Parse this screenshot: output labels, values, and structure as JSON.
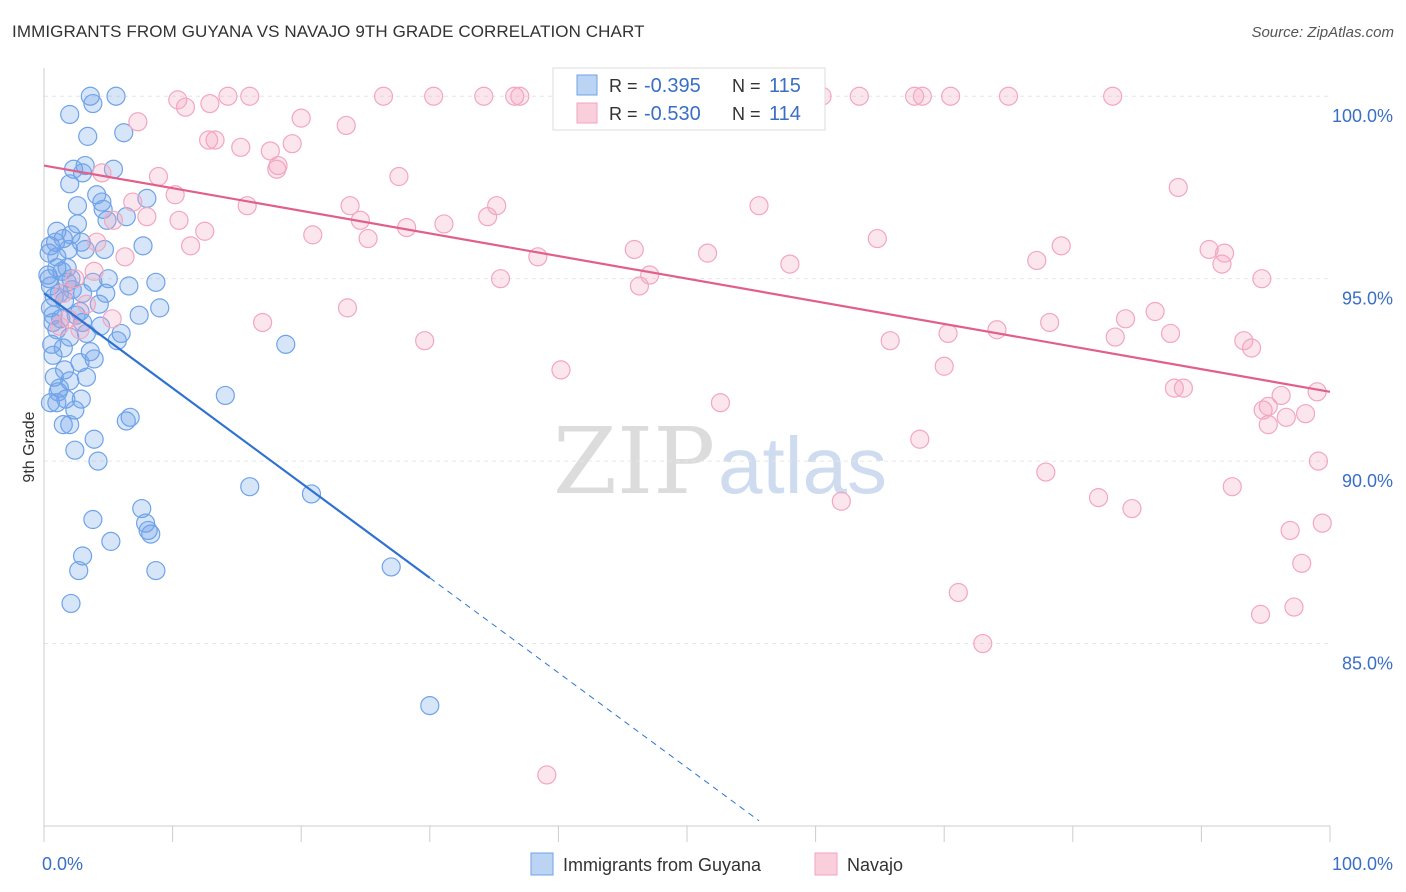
{
  "title": "IMMIGRANTS FROM GUYANA VS NAVAJO 9TH GRADE CORRELATION CHART",
  "source": "Source: ZipAtlas.com",
  "watermark": {
    "zip": "ZIP",
    "atlas": "atlas"
  },
  "chart_data": {
    "type": "scatter",
    "ylabel": "9th Grade",
    "xlim": [
      0,
      100
    ],
    "ylim": [
      80.0,
      100.5
    ],
    "y_ticks": [
      85.0,
      90.0,
      95.0,
      100.0
    ],
    "y_tick_labels": [
      "85.0%",
      "90.0%",
      "95.0%",
      "100.0%"
    ],
    "x_tick_labels": [
      "0.0%",
      "100.0%"
    ],
    "grid": true,
    "legend_placement": "top-center",
    "legend": [
      {
        "r_label": "R = ",
        "r_value": "-0.395",
        "n_label": "N = ",
        "n_value": "115"
      },
      {
        "r_label": "R = ",
        "r_value": "-0.530",
        "n_label": "N = ",
        "n_value": "114"
      }
    ],
    "series": [
      {
        "name": "Immigrants from Guyana",
        "color": "#6fa3e8",
        "line_color": "#2f72d1",
        "trend": {
          "x0": 0.0,
          "y0": 94.6,
          "x1": 30.0,
          "y1": 86.8,
          "dash_to_x": 55.6
        },
        "points": [
          [
            3.6,
            100.0
          ],
          [
            5.6,
            100.0
          ],
          [
            3.8,
            99.8
          ],
          [
            2.0,
            99.5
          ],
          [
            6.2,
            99.0
          ],
          [
            3.4,
            98.9
          ],
          [
            3.2,
            98.1
          ],
          [
            2.3,
            98.0
          ],
          [
            5.4,
            98.0
          ],
          [
            3.0,
            97.9
          ],
          [
            2.0,
            97.6
          ],
          [
            4.1,
            97.3
          ],
          [
            8.0,
            97.2
          ],
          [
            4.5,
            97.1
          ],
          [
            2.6,
            97.0
          ],
          [
            4.6,
            96.9
          ],
          [
            6.4,
            96.7
          ],
          [
            4.9,
            96.6
          ],
          [
            2.6,
            96.5
          ],
          [
            1.0,
            96.3
          ],
          [
            2.1,
            96.2
          ],
          [
            1.5,
            96.1
          ],
          [
            2.9,
            96.0
          ],
          [
            7.7,
            95.9
          ],
          [
            4.7,
            95.8
          ],
          [
            3.2,
            95.8
          ],
          [
            0.4,
            95.7
          ],
          [
            1.0,
            95.6
          ],
          [
            1.8,
            95.3
          ],
          [
            0.3,
            95.1
          ],
          [
            2.1,
            95.0
          ],
          [
            5.0,
            95.0
          ],
          [
            3.8,
            94.9
          ],
          [
            1.8,
            94.9
          ],
          [
            8.7,
            94.9
          ],
          [
            0.5,
            94.8
          ],
          [
            6.6,
            94.8
          ],
          [
            3.0,
            94.6
          ],
          [
            4.8,
            94.6
          ],
          [
            1.6,
            94.4
          ],
          [
            4.3,
            94.3
          ],
          [
            0.5,
            94.2
          ],
          [
            9.0,
            94.2
          ],
          [
            2.8,
            94.1
          ],
          [
            7.4,
            94.0
          ],
          [
            2.5,
            94.0
          ],
          [
            0.7,
            93.8
          ],
          [
            3.0,
            93.8
          ],
          [
            4.4,
            93.7
          ],
          [
            1.0,
            93.6
          ],
          [
            3.3,
            93.5
          ],
          [
            6.0,
            93.5
          ],
          [
            2.0,
            93.4
          ],
          [
            5.7,
            93.3
          ],
          [
            18.8,
            93.2
          ],
          [
            1.5,
            93.1
          ],
          [
            3.6,
            93.0
          ],
          [
            0.7,
            92.9
          ],
          [
            3.9,
            92.8
          ],
          [
            2.8,
            92.7
          ],
          [
            0.8,
            92.3
          ],
          [
            3.3,
            92.3
          ],
          [
            2.0,
            92.2
          ],
          [
            1.2,
            92.0
          ],
          [
            14.1,
            91.8
          ],
          [
            0.5,
            91.6
          ],
          [
            1.0,
            91.6
          ],
          [
            1.7,
            91.7
          ],
          [
            2.9,
            91.7
          ],
          [
            2.4,
            91.4
          ],
          [
            6.7,
            91.2
          ],
          [
            6.4,
            91.1
          ],
          [
            2.0,
            91.0
          ],
          [
            1.5,
            91.0
          ],
          [
            3.9,
            90.6
          ],
          [
            2.4,
            90.3
          ],
          [
            4.2,
            90.0
          ],
          [
            16.0,
            89.3
          ],
          [
            20.8,
            89.1
          ],
          [
            7.6,
            88.7
          ],
          [
            3.8,
            88.4
          ],
          [
            7.9,
            88.3
          ],
          [
            8.1,
            88.1
          ],
          [
            8.3,
            88.0
          ],
          [
            5.2,
            87.8
          ],
          [
            3.0,
            87.4
          ],
          [
            27.0,
            87.1
          ],
          [
            2.7,
            87.0
          ],
          [
            8.7,
            87.0
          ],
          [
            2.1,
            86.1
          ],
          [
            30.0,
            83.3
          ],
          [
            1.0,
            95.3
          ],
          [
            0.8,
            94.5
          ],
          [
            1.3,
            93.9
          ],
          [
            1.9,
            95.8
          ],
          [
            2.2,
            94.7
          ],
          [
            0.9,
            96.0
          ],
          [
            1.4,
            95.2
          ],
          [
            0.6,
            93.2
          ],
          [
            1.1,
            91.9
          ],
          [
            0.4,
            95.0
          ],
          [
            0.7,
            94.0
          ],
          [
            1.2,
            94.6
          ],
          [
            0.5,
            95.9
          ],
          [
            1.6,
            92.5
          ]
        ]
      },
      {
        "name": "Navajo",
        "color": "#f3a6bf",
        "line_color": "#e0608a",
        "trend": {
          "x0": 0.0,
          "y0": 98.1,
          "x1": 100.0,
          "y1": 91.9
        },
        "points": [
          [
            14.3,
            100.0
          ],
          [
            16.0,
            100.0
          ],
          [
            26.4,
            100.0
          ],
          [
            30.3,
            100.0
          ],
          [
            34.2,
            100.0
          ],
          [
            36.6,
            100.0
          ],
          [
            37.0,
            100.0
          ],
          [
            52.1,
            100.0
          ],
          [
            58.5,
            100.0
          ],
          [
            60.5,
            100.0
          ],
          [
            63.4,
            100.0
          ],
          [
            67.7,
            100.0
          ],
          [
            68.3,
            100.0
          ],
          [
            70.5,
            100.0
          ],
          [
            75.0,
            100.0
          ],
          [
            83.1,
            100.0
          ],
          [
            10.4,
            99.9
          ],
          [
            12.9,
            99.8
          ],
          [
            11.0,
            99.7
          ],
          [
            20.0,
            99.4
          ],
          [
            7.3,
            99.3
          ],
          [
            23.5,
            99.2
          ],
          [
            12.8,
            98.8
          ],
          [
            13.3,
            98.8
          ],
          [
            19.3,
            98.7
          ],
          [
            15.3,
            98.6
          ],
          [
            17.6,
            98.5
          ],
          [
            18.2,
            98.1
          ],
          [
            18.1,
            98.0
          ],
          [
            4.5,
            97.9
          ],
          [
            8.9,
            97.8
          ],
          [
            27.6,
            97.8
          ],
          [
            88.2,
            97.5
          ],
          [
            10.2,
            97.3
          ],
          [
            6.9,
            97.1
          ],
          [
            55.6,
            97.0
          ],
          [
            23.8,
            97.0
          ],
          [
            35.2,
            97.0
          ],
          [
            15.8,
            97.0
          ],
          [
            34.5,
            96.7
          ],
          [
            8.0,
            96.7
          ],
          [
            5.4,
            96.6
          ],
          [
            24.6,
            96.6
          ],
          [
            10.5,
            96.6
          ],
          [
            31.1,
            96.5
          ],
          [
            28.2,
            96.4
          ],
          [
            12.5,
            96.3
          ],
          [
            20.9,
            96.2
          ],
          [
            25.2,
            96.1
          ],
          [
            64.8,
            96.1
          ],
          [
            4.1,
            96.0
          ],
          [
            11.4,
            95.9
          ],
          [
            79.1,
            95.9
          ],
          [
            45.9,
            95.8
          ],
          [
            90.6,
            95.8
          ],
          [
            51.6,
            95.7
          ],
          [
            91.8,
            95.7
          ],
          [
            6.3,
            95.6
          ],
          [
            38.4,
            95.6
          ],
          [
            77.2,
            95.5
          ],
          [
            58.0,
            95.4
          ],
          [
            91.6,
            95.4
          ],
          [
            3.9,
            95.2
          ],
          [
            47.1,
            95.1
          ],
          [
            94.7,
            95.0
          ],
          [
            35.5,
            95.0
          ],
          [
            46.3,
            94.8
          ],
          [
            1.5,
            94.6
          ],
          [
            23.6,
            94.2
          ],
          [
            86.4,
            94.1
          ],
          [
            5.3,
            93.9
          ],
          [
            1.9,
            93.9
          ],
          [
            17.0,
            93.8
          ],
          [
            84.1,
            93.9
          ],
          [
            78.2,
            93.8
          ],
          [
            74.1,
            93.6
          ],
          [
            87.6,
            93.5
          ],
          [
            70.3,
            93.5
          ],
          [
            83.3,
            93.4
          ],
          [
            93.3,
            93.3
          ],
          [
            29.6,
            93.3
          ],
          [
            65.8,
            93.3
          ],
          [
            93.9,
            93.1
          ],
          [
            70.0,
            92.6
          ],
          [
            40.2,
            92.5
          ],
          [
            88.6,
            92.0
          ],
          [
            87.9,
            92.0
          ],
          [
            99.0,
            91.9
          ],
          [
            96.2,
            91.8
          ],
          [
            52.6,
            91.6
          ],
          [
            95.2,
            91.5
          ],
          [
            94.8,
            91.4
          ],
          [
            98.1,
            91.3
          ],
          [
            96.6,
            91.2
          ],
          [
            95.2,
            91.0
          ],
          [
            68.1,
            90.6
          ],
          [
            99.1,
            90.0
          ],
          [
            77.9,
            89.7
          ],
          [
            92.4,
            89.3
          ],
          [
            82.0,
            89.0
          ],
          [
            62.0,
            88.9
          ],
          [
            84.6,
            88.7
          ],
          [
            99.4,
            88.3
          ],
          [
            96.9,
            88.1
          ],
          [
            97.8,
            87.2
          ],
          [
            71.1,
            86.4
          ],
          [
            97.2,
            86.0
          ],
          [
            94.6,
            85.8
          ],
          [
            73.0,
            85.0
          ],
          [
            39.1,
            81.4
          ],
          [
            2.4,
            95.0
          ],
          [
            3.3,
            94.3
          ],
          [
            2.8,
            93.6
          ],
          [
            1.2,
            93.7
          ]
        ]
      }
    ]
  }
}
